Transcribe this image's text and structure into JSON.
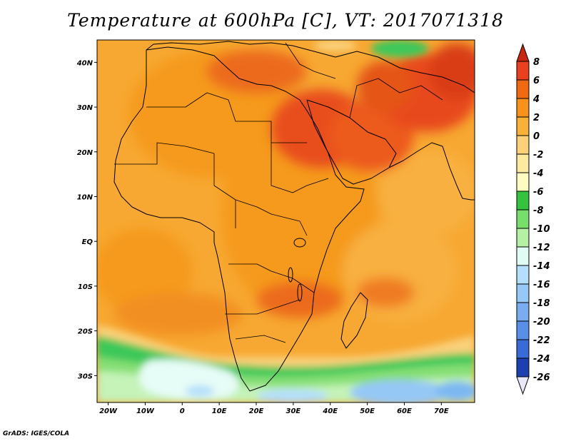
{
  "title": "Temperature at 600hPa [C], VT: 2017071318",
  "credit": "GrADS: IGES/COLA",
  "axes": {
    "lat_labels": [
      "40N",
      "30N",
      "20N",
      "10N",
      "EQ",
      "10S",
      "20S",
      "30S"
    ],
    "lat_values": [
      40,
      30,
      20,
      10,
      0,
      -10,
      -20,
      -30
    ],
    "lon_labels": [
      "20W",
      "10W",
      "0",
      "10E",
      "20E",
      "30E",
      "40E",
      "50E",
      "60E",
      "70E"
    ],
    "lon_values": [
      -20,
      -10,
      0,
      10,
      20,
      30,
      40,
      50,
      60,
      70
    ],
    "lon_range": [
      -23,
      79
    ],
    "lat_range": [
      -36,
      45
    ]
  },
  "colorbar": {
    "labels": [
      "8",
      "6",
      "4",
      "2",
      "0",
      "-2",
      "-4",
      "-6",
      "-8",
      "-10",
      "-12",
      "-14",
      "-16",
      "-18",
      "-20",
      "-22",
      "-24",
      "-26"
    ],
    "colors": [
      "#e8411f",
      "#f06a14",
      "#f8921c",
      "#fab13a",
      "#fdd177",
      "#fde9a0",
      "#fefcc0",
      "#35c23e",
      "#79dd6b",
      "#b4f1a5",
      "#e0fbf4",
      "#b4dffa",
      "#96c9f6",
      "#79adf0",
      "#5a8fe8",
      "#3a6ad6",
      "#1e3fb0",
      "#0d1a7c"
    ],
    "top_color": "#c82510",
    "bottom_color": "#e8e8f8"
  },
  "colors": {
    "warm_base": "#f5a623",
    "hot": "#e84e1b",
    "very_hot": "#d93d14",
    "cool_green": "#3cc85a",
    "light_green": "#9ee88a",
    "pale_cyan": "#e6fcf7",
    "light_blue": "#96c8f5",
    "border": "#000000"
  }
}
